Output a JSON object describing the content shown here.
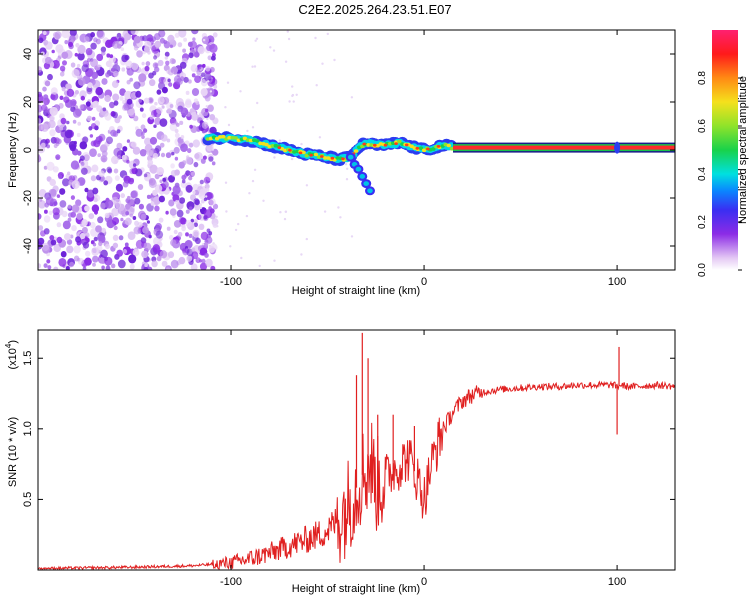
{
  "title": "C2E2.2025.264.23.51.E07",
  "chart_data": [
    {
      "type": "heatmap",
      "title": "C2E2.2025.264.23.51.E07",
      "xlabel": "Height of straight line (km)",
      "ylabel": "Frequency (Hz)",
      "xlim": [
        -200,
        130
      ],
      "ylim": [
        -50,
        50
      ],
      "xticks": [
        -100,
        0,
        100
      ],
      "xtick_labels": [
        "-100",
        "0",
        "100"
      ],
      "yticks": [
        -40,
        -20,
        0,
        20,
        40
      ],
      "ytick_labels": [
        "-40",
        "-20",
        "0",
        "20",
        "40"
      ],
      "grid": false,
      "noise_region_x": [
        -200,
        -112
      ],
      "trace": {
        "x": [
          -112,
          -100,
          -90,
          -80,
          -70,
          -60,
          -50,
          -44,
          -38,
          -34,
          -30,
          -26,
          -20,
          -12,
          -5,
          0,
          5,
          10,
          15,
          30,
          60,
          100,
          130
        ],
        "freq": [
          5,
          5,
          4,
          2,
          0,
          -2,
          -3,
          -4,
          -3,
          1,
          3,
          2,
          2,
          3,
          1,
          0,
          1,
          2,
          1,
          1,
          1,
          1,
          1
        ]
      },
      "branch": {
        "x": [
          -38,
          -36,
          -34,
          -32,
          -30,
          -28
        ],
        "freq": [
          -3,
          -6,
          -8,
          -11,
          -14,
          -17
        ]
      },
      "colorbar": {
        "label": "Normalized spectral amplitude",
        "ticks": [
          0.0,
          0.2,
          0.4,
          0.6,
          0.8
        ],
        "tick_labels": [
          "0.0",
          "0.2",
          "0.4",
          "0.6",
          "0.8"
        ],
        "range": [
          0,
          1
        ],
        "colors": [
          "#ffffff",
          "#e4c8f4",
          "#8c2ce6",
          "#3a2ef2",
          "#0a86ff",
          "#00e0e0",
          "#19d24a",
          "#8fe32a",
          "#f5e11c",
          "#ff8a14",
          "#ff1a1a",
          "#ff2070"
        ]
      }
    },
    {
      "type": "line",
      "xlabel": "Height of straight line (km)",
      "ylabel": "SNR (10 * v/v)",
      "y_multiplier": "(x10",
      "y_multiplier_exp": "4",
      "y_multiplier_close": ")",
      "xlim": [
        -200,
        130
      ],
      "ylim": [
        0,
        1.7
      ],
      "xticks": [
        -100,
        0,
        100
      ],
      "xtick_labels": [
        "-100",
        "0",
        "100"
      ],
      "yticks": [
        0.5,
        1.0,
        1.5
      ],
      "ytick_labels": [
        "0.5",
        "1.0",
        "1.5"
      ],
      "grid": false,
      "series": [
        {
          "name": "SNR",
          "color": "#e02020",
          "x": [
            -200,
            -150,
            -120,
            -100,
            -90,
            -80,
            -70,
            -60,
            -50,
            -45,
            -40,
            -36,
            -33,
            -31,
            -29,
            -27,
            -25,
            -22,
            -20,
            -17,
            -15,
            -12,
            -10,
            -8,
            -5,
            -2,
            0,
            3,
            6,
            10,
            15,
            20,
            25,
            30,
            40,
            50,
            60,
            70,
            80,
            90,
            98,
            100,
            102,
            105,
            110,
            120,
            130
          ],
          "y": [
            0.01,
            0.02,
            0.03,
            0.05,
            0.08,
            0.12,
            0.17,
            0.22,
            0.28,
            0.35,
            0.45,
            0.55,
            0.65,
            0.7,
            0.72,
            0.75,
            0.6,
            0.62,
            0.65,
            0.7,
            0.72,
            0.75,
            0.78,
            0.8,
            0.7,
            0.6,
            0.5,
            0.7,
            0.85,
            1.0,
            1.12,
            1.2,
            1.24,
            1.26,
            1.28,
            1.29,
            1.3,
            1.3,
            1.31,
            1.31,
            1.31,
            1.3,
            1.31,
            1.3,
            1.3,
            1.31,
            1.3
          ]
        }
      ],
      "spikes": [
        {
          "x": -35,
          "ymax": 1.38
        },
        {
          "x": -32,
          "ymax": 1.68
        },
        {
          "x": -29,
          "ymax": 1.5
        },
        {
          "x": -24,
          "ymax": 1.1
        },
        {
          "x": -16,
          "ymax": 1.1
        },
        {
          "x": -5,
          "ymax": 1.02
        },
        {
          "x": 101,
          "ymax": 1.58
        },
        {
          "x": 100,
          "ymin": 0.96
        }
      ]
    }
  ]
}
